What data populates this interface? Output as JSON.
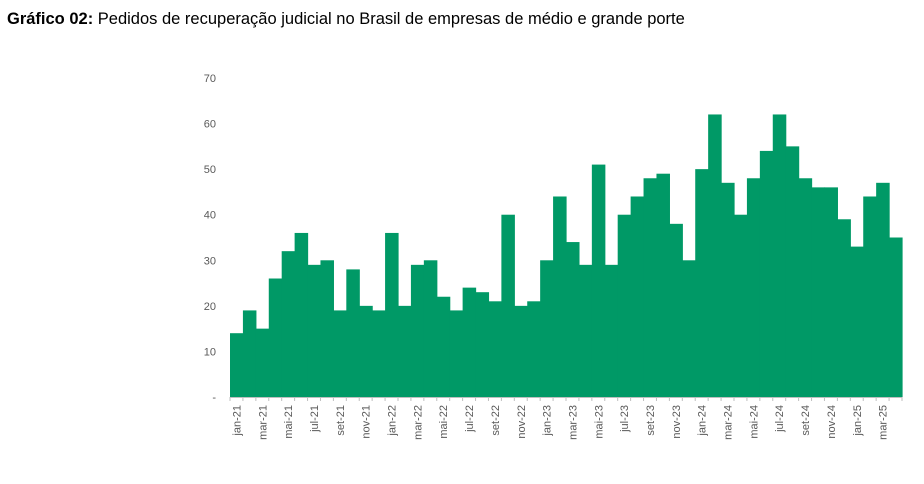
{
  "header": {
    "prefix": "Gráfico 02:",
    "text": " Pedidos de recuperação judicial no Brasil de empresas de médio e grande porte"
  },
  "chart_data": {
    "type": "area",
    "title": "Gráfico 02: Pedidos de recuperação judicial no Brasil de empresas de médio e grande porte",
    "xlabel": "",
    "ylabel": "",
    "ylim": [
      0,
      70
    ],
    "yticks": [
      "-",
      "10",
      "20",
      "30",
      "40",
      "50",
      "60",
      "70"
    ],
    "grid": false,
    "color": "#009966",
    "categories": [
      "jan-21",
      "fev-21",
      "mar-21",
      "abr-21",
      "mai-21",
      "jun-21",
      "jul-21",
      "ago-21",
      "set-21",
      "out-21",
      "nov-21",
      "dez-21",
      "jan-22",
      "fev-22",
      "mar-22",
      "abr-22",
      "mai-22",
      "jun-22",
      "jul-22",
      "ago-22",
      "set-22",
      "out-22",
      "nov-22",
      "dez-22",
      "jan-23",
      "fev-23",
      "mar-23",
      "abr-23",
      "mai-23",
      "jun-23",
      "jul-23",
      "ago-23",
      "set-23",
      "out-23",
      "nov-23",
      "dez-23",
      "jan-24",
      "fev-24",
      "mar-24",
      "abr-24",
      "mai-24",
      "jun-24",
      "jul-24",
      "ago-24",
      "set-24",
      "out-24",
      "nov-24",
      "dez-24",
      "jan-25",
      "fev-25",
      "mar-25",
      "abr-25"
    ],
    "visible_labels": [
      "jan-21",
      "mar-21",
      "mai-21",
      "jul-21",
      "set-21",
      "nov-21",
      "jan-22",
      "mar-22",
      "mai-22",
      "jul-22",
      "set-22",
      "nov-22",
      "jan-23",
      "mar-23",
      "mai-23",
      "jul-23",
      "set-23",
      "nov-23",
      "jan-24",
      "mar-24",
      "mai-24",
      "jul-24",
      "set-24",
      "nov-24",
      "jan-25",
      "mar-25"
    ],
    "values": [
      14,
      19,
      15,
      26,
      32,
      36,
      29,
      30,
      19,
      28,
      20,
      19,
      36,
      20,
      29,
      30,
      22,
      19,
      24,
      23,
      21,
      40,
      20,
      21,
      30,
      44,
      34,
      29,
      51,
      29,
      40,
      44,
      48,
      49,
      38,
      30,
      50,
      62,
      47,
      40,
      48,
      54,
      62,
      55,
      48,
      46,
      46,
      39,
      33,
      44,
      47,
      35
    ]
  }
}
